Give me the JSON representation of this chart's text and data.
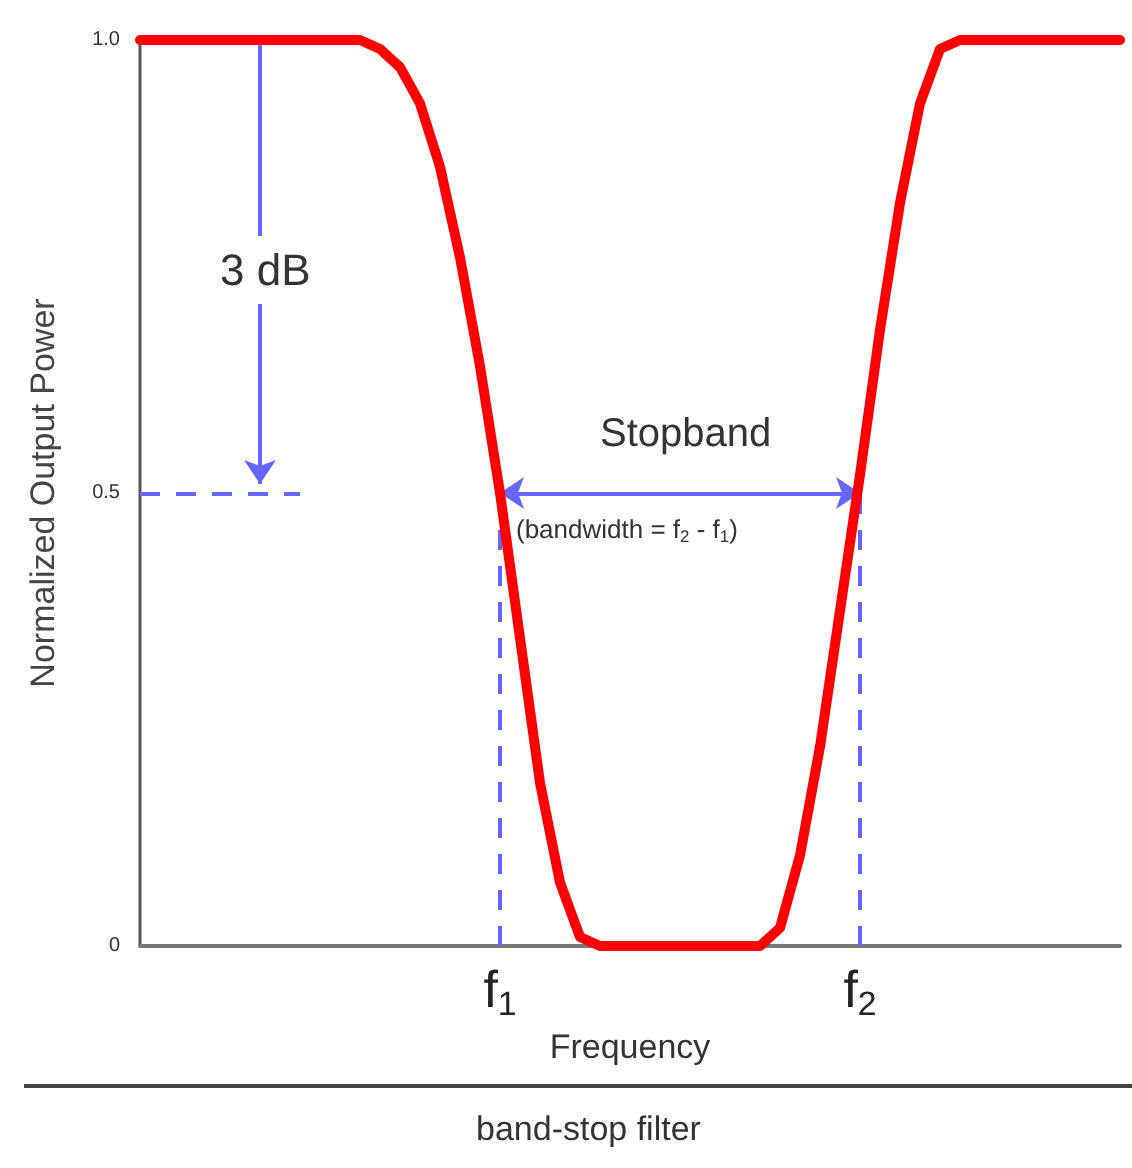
{
  "chart_data": {
    "type": "line",
    "xlabel": "Frequency",
    "ylabel": "Normalized Output Power",
    "categories": [
      null,
      null,
      null,
      null,
      null,
      null,
      null,
      null,
      null,
      null,
      null,
      null,
      null,
      null,
      null,
      null,
      null,
      null,
      "f$_{1}$",
      null,
      null,
      null,
      null,
      null,
      null,
      null,
      null,
      null,
      null,
      null,
      null,
      null,
      null,
      null,
      null,
      null,
      "f$_{2}$",
      null,
      null,
      null,
      null,
      null,
      null,
      null,
      null,
      null,
      null,
      null,
      null,
      null
    ],
    "series": [
      {
        "color": "#ff0000",
        "values": [
          1,
          1,
          1,
          1,
          1,
          1,
          1,
          1,
          1,
          1,
          1,
          1,
          0.99,
          0.97,
          0.93,
          0.86,
          0.76,
          0.64,
          0.5,
          0.34,
          0.18,
          0.07,
          0.01,
          0,
          0,
          0,
          0,
          0,
          0,
          0,
          0,
          0,
          0.02,
          0.1,
          0.22,
          0.37,
          0.52,
          0.68,
          0.82,
          0.93,
          0.99,
          1,
          1,
          1,
          1,
          1,
          1,
          1,
          1,
          1
        ]
      }
    ],
    "ylim": [
      0,
      1
    ],
    "yticks": [
      0,
      0.5,
      {
        "value": 1,
        "label": "1.0"
      }
    ],
    "ref_lines": [
      {
        "axis": "y",
        "value": 0.5,
        "color": "#6666ff",
        "line_style": "dashed"
      },
      {
        "axis": "x",
        "value": "f$_{1}$",
        "color": "#6666ff",
        "line_style": "dashed"
      },
      {
        "axis": "x",
        "value": "f$_{2}$",
        "color": "#6666ff",
        "line_style": "dashed"
      }
    ],
    "annotations": [
      "3 dB",
      "Stopband",
      "(bandwidth = f$_{2}$ - f$_{1}$)",
      "band-stop filter"
    ],
    "marker": "none",
    "line_style": "solid"
  }
}
